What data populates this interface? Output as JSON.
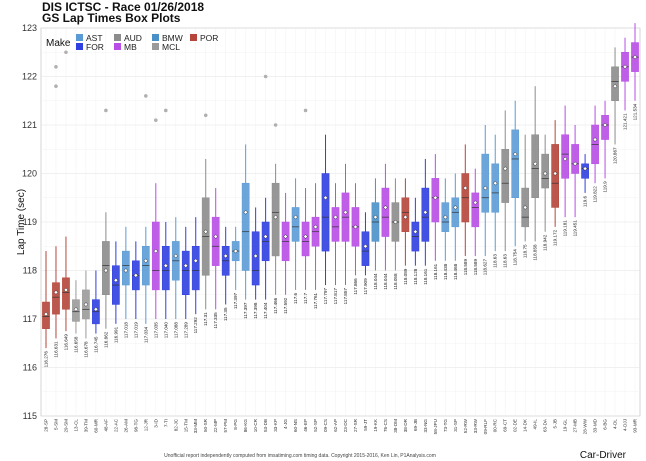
{
  "title": "DIS ICTSC - Race 01/26/2018",
  "subtitle": "GS Lap Times Box Plots",
  "footer": "Unofficial report independently computed from imsatiming.com timing data. Copyright 2015-2016, Ken Lin, P1Analysis.com",
  "chart_data": {
    "type": "box",
    "ylabel": "Lap Time (sec)",
    "xlabel": "Car-Driver",
    "ylim": [
      115,
      123
    ],
    "yticks": [
      115,
      116,
      117,
      118,
      119,
      120,
      121,
      122,
      123
    ],
    "grid": true,
    "legend": {
      "title": "Make",
      "placement": "top-left",
      "entries": [
        {
          "make": "AST",
          "color": "#5b9bd5"
        },
        {
          "make": "AUD",
          "color": "#8c8c8c"
        },
        {
          "make": "BMW",
          "color": "#4a90c8"
        },
        {
          "make": "FOR",
          "color": "#2f3fe0"
        },
        {
          "make": "MB",
          "color": "#b84ee6"
        },
        {
          "make": "MCL",
          "color": "#9a9a9a"
        },
        {
          "make": "POR",
          "color": "#b5453a"
        }
      ]
    },
    "make_colors": {
      "AST": "#5b9bd5",
      "AUD": "#8c8c8c",
      "BMW": "#4a90c8",
      "FOR": "#2f3fe0",
      "MB": "#b84ee6",
      "MCL": "#9a9a9a",
      "POR": "#b5453a"
    },
    "boxes": [
      {
        "car": "28-SP",
        "make": "POR",
        "low": 116.4,
        "q1": 116.8,
        "median": 117.05,
        "q3": 117.35,
        "high": 118.4,
        "mean": 117.1,
        "label": "116.276",
        "outliers": []
      },
      {
        "car": "5-SM",
        "make": "POR",
        "low": 116.6,
        "q1": 117.1,
        "median": 117.45,
        "q3": 117.75,
        "high": 118.5,
        "mean": 117.55,
        "label": "116.631",
        "outliers": [
          122.2,
          121.8
        ]
      },
      {
        "car": "29-SM",
        "make": "POR",
        "low": 116.75,
        "q1": 117.2,
        "median": 117.55,
        "q3": 117.85,
        "high": 118.7,
        "mean": 117.6,
        "label": "116.649",
        "outliers": [
          122.5
        ]
      },
      {
        "car": "13-CL",
        "make": "MCL",
        "low": 116.7,
        "q1": 116.95,
        "median": 117.15,
        "q3": 117.4,
        "high": 117.8,
        "mean": 117.2,
        "label": "116.658",
        "outliers": []
      },
      {
        "car": "39-TM",
        "make": "MCL",
        "low": 116.6,
        "q1": 117.0,
        "median": 117.2,
        "q3": 117.6,
        "high": 118.0,
        "mean": 117.3,
        "label": "116.678",
        "outliers": []
      },
      {
        "car": "60-MR",
        "make": "FOR",
        "low": 116.7,
        "q1": 116.9,
        "median": 117.15,
        "q3": 117.4,
        "high": 118.0,
        "mean": 117.2,
        "label": "116.745",
        "outliers": []
      },
      {
        "car": "48-AF",
        "make": "AUD",
        "low": 116.8,
        "q1": 117.5,
        "median": 118.1,
        "q3": 118.6,
        "high": 119.2,
        "mean": 118.0,
        "label": "116.862",
        "outliers": [
          121.3
        ]
      },
      {
        "car": "22-AC",
        "make": "FOR",
        "low": 116.9,
        "q1": 117.3,
        "median": 117.7,
        "q3": 118.1,
        "high": 118.6,
        "mean": 117.8,
        "label": "116.991",
        "outliers": []
      },
      {
        "car": "26-AM",
        "make": "AST",
        "low": 117.0,
        "q1": 117.7,
        "median": 118.1,
        "q3": 118.4,
        "high": 118.9,
        "mean": 118.0,
        "label": "117.018",
        "outliers": []
      },
      {
        "car": "98-TG",
        "make": "FOR",
        "low": 117.0,
        "q1": 117.6,
        "median": 117.9,
        "q3": 118.2,
        "high": 118.6,
        "mean": 117.9,
        "label": "117.019",
        "outliers": []
      },
      {
        "car": "12-JR",
        "make": "AST",
        "low": 116.9,
        "q1": 117.7,
        "median": 118.1,
        "q3": 118.5,
        "high": 118.9,
        "mean": 118.2,
        "label": "117.034",
        "outliers": [
          121.6
        ]
      },
      {
        "car": "3-ID",
        "make": "MB",
        "low": 117.0,
        "q1": 117.6,
        "median": 118.0,
        "q3": 119.0,
        "high": 119.8,
        "mean": 118.4,
        "label": "117.035",
        "outliers": [
          121.1
        ]
      },
      {
        "car": "7-TI",
        "make": "FOR",
        "low": 117.0,
        "q1": 117.6,
        "median": 118.0,
        "q3": 118.5,
        "high": 119.0,
        "mean": 118.1,
        "label": "117.040",
        "outliers": [
          121.3
        ]
      },
      {
        "car": "82-JC",
        "make": "AST",
        "low": 117.0,
        "q1": 117.8,
        "median": 118.2,
        "q3": 118.6,
        "high": 119.1,
        "mean": 118.3,
        "label": "117.088",
        "outliers": []
      },
      {
        "car": "15-TM",
        "make": "FOR",
        "low": 117.0,
        "q1": 117.5,
        "median": 118.0,
        "q3": 118.4,
        "high": 118.9,
        "mean": 118.1,
        "label": "117.289",
        "outliers": []
      },
      {
        "car": "33-MM",
        "make": "FOR",
        "low": 117.1,
        "q1": 117.6,
        "median": 118.0,
        "q3": 118.5,
        "high": 119.1,
        "mean": 118.2,
        "label": "117.292",
        "outliers": []
      },
      {
        "car": "50-SR",
        "make": "AUD",
        "low": 117.2,
        "q1": 117.9,
        "median": 118.7,
        "q3": 119.5,
        "high": 120.3,
        "mean": 118.8,
        "label": "117.31",
        "outliers": [
          121.2
        ]
      },
      {
        "car": "22-MP",
        "make": "MB",
        "low": 117.2,
        "q1": 118.1,
        "median": 118.5,
        "q3": 119.1,
        "high": 119.7,
        "mean": 118.7,
        "label": "117.335",
        "outliers": []
      },
      {
        "car": "57-PM",
        "make": "FOR",
        "low": 117.3,
        "q1": 117.9,
        "median": 118.2,
        "q3": 118.5,
        "high": 118.9,
        "mean": 118.3,
        "label": "117.35",
        "outliers": []
      },
      {
        "car": "8-PG",
        "make": "AST",
        "low": 117.6,
        "q1": 118.2,
        "median": 118.4,
        "q3": 118.6,
        "high": 118.9,
        "mean": 118.4,
        "label": "117.397",
        "outliers": []
      },
      {
        "car": "86-KG",
        "make": "AST",
        "low": 117.4,
        "q1": 118.0,
        "median": 118.8,
        "q3": 119.8,
        "high": 120.6,
        "mean": 119.2,
        "label": "117.397",
        "outliers": []
      },
      {
        "car": "10-CR",
        "make": "FOR",
        "low": 117.4,
        "q1": 117.7,
        "median": 118.0,
        "q3": 118.8,
        "high": 119.3,
        "mean": 118.3,
        "label": "117.398",
        "outliers": []
      },
      {
        "car": "53-DB",
        "make": "FOR",
        "low": 117.4,
        "q1": 118.2,
        "median": 118.6,
        "q3": 119.0,
        "high": 119.5,
        "mean": 118.7,
        "label": "117.404",
        "outliers": [
          122.0
        ]
      },
      {
        "car": "33-KP",
        "make": "AUD",
        "low": 117.5,
        "q1": 118.3,
        "median": 119.2,
        "q3": 119.8,
        "high": 120.2,
        "mean": 119.1,
        "label": "117.466",
        "outliers": [
          121.0
        ]
      },
      {
        "car": "4-JG",
        "make": "MB",
        "low": 117.5,
        "q1": 118.2,
        "median": 118.6,
        "q3": 119.0,
        "high": 119.6,
        "mean": 118.7,
        "label": "117.592",
        "outliers": []
      },
      {
        "car": "60-NS",
        "make": "AST",
        "low": 117.6,
        "q1": 118.6,
        "median": 118.9,
        "q3": 119.3,
        "high": 119.9,
        "mean": 119.1,
        "label": "117.6",
        "outliers": []
      },
      {
        "car": "46-EP",
        "make": "MB",
        "low": 117.6,
        "q1": 118.3,
        "median": 118.6,
        "q3": 119.0,
        "high": 119.7,
        "mean": 118.7,
        "label": "117.7",
        "outliers": [
          121.3
        ]
      },
      {
        "car": "52-SP",
        "make": "MB",
        "low": 117.6,
        "q1": 118.5,
        "median": 118.8,
        "q3": 119.1,
        "high": 119.8,
        "mean": 118.9,
        "label": "117.761",
        "outliers": []
      },
      {
        "car": "09-CS",
        "make": "FOR",
        "low": 117.7,
        "q1": 118.4,
        "median": 119.1,
        "q3": 120.0,
        "high": 120.8,
        "mean": 119.5,
        "label": "117.797",
        "outliers": []
      },
      {
        "car": "62-AP",
        "make": "MB",
        "low": 117.7,
        "q1": 118.6,
        "median": 118.9,
        "q3": 119.3,
        "high": 119.8,
        "mean": 119.1,
        "label": "117.817",
        "outliers": []
      },
      {
        "car": "23-DC",
        "make": "MB",
        "low": 117.7,
        "q1": 118.6,
        "median": 119.1,
        "q3": 119.6,
        "high": 120.2,
        "mean": 119.2,
        "label": "117.857",
        "outliers": []
      },
      {
        "car": "27-SR",
        "make": "MB",
        "low": 117.9,
        "q1": 118.5,
        "median": 118.9,
        "q3": 119.3,
        "high": 119.8,
        "mean": 118.9,
        "label": "117.866",
        "outliers": []
      },
      {
        "car": "59-JT",
        "make": "FOR",
        "low": 117.9,
        "q1": 118.1,
        "median": 118.4,
        "q3": 118.8,
        "high": 119.2,
        "mean": 118.5,
        "label": "117.909",
        "outliers": []
      },
      {
        "car": "19-KK",
        "make": "BMW",
        "low": 118.0,
        "q1": 118.6,
        "median": 119.0,
        "q3": 119.4,
        "high": 119.9,
        "mean": 119.1,
        "label": "118.044",
        "outliers": []
      },
      {
        "car": "76-CS",
        "make": "MB",
        "low": 118.0,
        "q1": 118.7,
        "median": 119.1,
        "q3": 119.7,
        "high": 120.2,
        "mean": 119.3,
        "label": "118.044",
        "outliers": []
      },
      {
        "car": "38-DM",
        "make": "AUD",
        "low": 118.0,
        "q1": 118.6,
        "median": 119.0,
        "q3": 119.4,
        "high": 119.9,
        "mean": 119.0,
        "label": "118.058",
        "outliers": []
      },
      {
        "car": "38-DR",
        "make": "POR",
        "low": 118.1,
        "q1": 118.8,
        "median": 119.2,
        "q3": 119.5,
        "high": 119.9,
        "mean": 119.1,
        "label": "118.089",
        "outliers": []
      },
      {
        "car": "69-JB",
        "make": "FOR",
        "low": 118.1,
        "q1": 118.4,
        "median": 118.7,
        "q3": 119.0,
        "high": 119.5,
        "mean": 118.8,
        "label": "118.128",
        "outliers": []
      },
      {
        "car": "33-NG",
        "make": "FOR",
        "low": 118.1,
        "q1": 118.6,
        "median": 119.1,
        "q3": 119.7,
        "high": 120.3,
        "mean": 119.2,
        "label": "118.161",
        "outliers": []
      },
      {
        "car": "58-JPU",
        "make": "MB",
        "low": 118.2,
        "q1": 119.0,
        "median": 119.5,
        "q3": 119.9,
        "high": 120.4,
        "mean": 119.5,
        "label": "118.161",
        "outliers": []
      },
      {
        "car": "73-TG",
        "make": "AST",
        "low": 118.2,
        "q1": 118.8,
        "median": 119.0,
        "q3": 119.4,
        "high": 119.9,
        "mean": 119.1,
        "label": "118.438",
        "outliers": []
      },
      {
        "car": "31-SP",
        "make": "AST",
        "low": 118.2,
        "q1": 118.9,
        "median": 119.2,
        "q3": 119.5,
        "high": 120.0,
        "mean": 119.3,
        "label": "118.468",
        "outliers": []
      },
      {
        "car": "52-RW",
        "make": "POR",
        "low": 118.3,
        "q1": 119.0,
        "median": 119.5,
        "q3": 120.0,
        "high": 120.6,
        "mean": 119.7,
        "label": "118.589",
        "outliers": []
      },
      {
        "car": "33-RW",
        "make": "MB",
        "low": 118.3,
        "q1": 118.9,
        "median": 119.3,
        "q3": 119.6,
        "high": 120.1,
        "mean": 119.4,
        "label": "118.589",
        "outliers": []
      },
      {
        "car": "09-RLF",
        "make": "AST",
        "low": 118.3,
        "q1": 119.2,
        "median": 119.5,
        "q3": 120.4,
        "high": 121.0,
        "mean": 119.7,
        "label": "118.627",
        "outliers": []
      },
      {
        "car": "00-RC",
        "make": "AST",
        "low": 118.4,
        "q1": 119.2,
        "median": 119.6,
        "q3": 120.2,
        "high": 120.8,
        "mean": 119.8,
        "label": "118.63",
        "outliers": []
      },
      {
        "car": "69-CT",
        "make": "AUD",
        "low": 118.4,
        "q1": 119.4,
        "median": 119.8,
        "q3": 120.5,
        "high": 121.3,
        "mean": 120.1,
        "label": "118.63",
        "outliers": []
      },
      {
        "car": "02-DE",
        "make": "AST",
        "low": 118.5,
        "q1": 119.5,
        "median": 120.3,
        "q3": 120.9,
        "high": 121.5,
        "mean": 120.4,
        "label": "118.754",
        "outliers": []
      },
      {
        "car": "14-DK",
        "make": "AUD",
        "low": 118.6,
        "q1": 118.9,
        "median": 119.1,
        "q3": 119.7,
        "high": 120.8,
        "mean": 119.3,
        "label": "118.75",
        "outliers": []
      },
      {
        "car": "49-IL",
        "make": "AUD",
        "low": 118.6,
        "q1": 119.5,
        "median": 120.1,
        "q3": 120.8,
        "high": 121.8,
        "mean": 120.2,
        "label": "118.858",
        "outliers": []
      },
      {
        "car": "63-DA",
        "make": "AUD",
        "low": 118.8,
        "q1": 119.7,
        "median": 119.9,
        "q3": 120.4,
        "high": 120.8,
        "mean": 120.0,
        "label": "118.942",
        "outliers": []
      },
      {
        "car": "5-JB",
        "make": "POR",
        "low": 118.9,
        "q1": 119.3,
        "median": 119.8,
        "q3": 120.6,
        "high": 121.1,
        "mean": 120.0,
        "label": "119.172",
        "outliers": []
      },
      {
        "car": "19-GL",
        "make": "MB",
        "low": 119.1,
        "q1": 119.9,
        "median": 120.4,
        "q3": 120.8,
        "high": 121.4,
        "mean": 120.3,
        "label": "119.181",
        "outliers": []
      },
      {
        "car": "27-MB",
        "make": "MB",
        "low": 119.1,
        "q1": 120.0,
        "median": 120.2,
        "q3": 120.6,
        "high": 121.0,
        "mean": 120.2,
        "label": "119.451",
        "outliers": []
      },
      {
        "car": "28-WW",
        "make": "FOR",
        "low": 119.6,
        "q1": 119.9,
        "median": 120.1,
        "q3": 120.2,
        "high": 120.4,
        "mean": 120.1,
        "label": "119.6",
        "outliers": []
      },
      {
        "car": "33-MD",
        "make": "MB",
        "low": 119.8,
        "q1": 120.2,
        "median": 120.6,
        "q3": 121.0,
        "high": 121.4,
        "mean": 120.7,
        "label": "119.822",
        "outliers": []
      },
      {
        "car": "6-BG",
        "make": "MB",
        "low": 119.9,
        "q1": 120.7,
        "median": 121.0,
        "q3": 121.2,
        "high": 121.5,
        "mean": 121.0,
        "label": "119.9",
        "outliers": []
      },
      {
        "car": "4-DL",
        "make": "AUD",
        "low": 120.6,
        "q1": 121.5,
        "median": 121.9,
        "q3": 122.2,
        "high": 122.6,
        "mean": 121.8,
        "label": "120.867",
        "outliers": []
      },
      {
        "car": "4-DJJ",
        "make": "MB",
        "low": 121.3,
        "q1": 121.9,
        "median": 122.2,
        "q3": 122.5,
        "high": 122.8,
        "mean": 122.2,
        "label": "121.421",
        "outliers": []
      },
      {
        "car": "93-MR",
        "make": "MB",
        "low": 121.5,
        "q1": 122.1,
        "median": 122.4,
        "q3": 122.7,
        "high": 123.1,
        "mean": 122.4,
        "label": "121.534",
        "outliers": []
      }
    ]
  }
}
